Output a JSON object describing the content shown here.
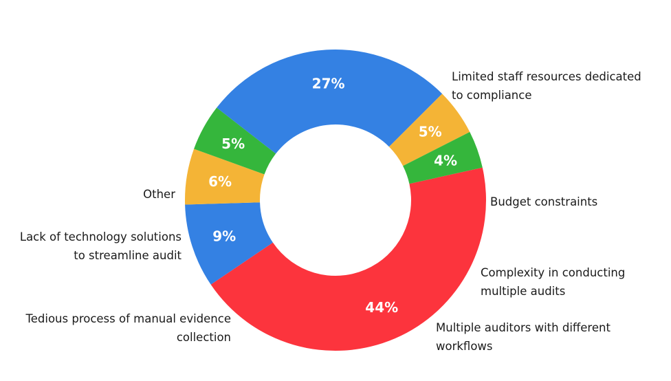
{
  "chart_data": {
    "type": "pie",
    "variant": "donut",
    "title": "",
    "legend": "none",
    "slices": [
      {
        "label": [
          "Limited staff resources  dedicated",
          "to compliance"
        ],
        "value": 44,
        "value_label": "44%",
        "color": "#fc343d"
      },
      {
        "label": [
          "Budget constraints"
        ],
        "value": 9,
        "value_label": "9%",
        "color": "#3481e3"
      },
      {
        "label": [
          "Complexity in conducting",
          "multiple audits"
        ],
        "value": 6,
        "value_label": "6%",
        "color": "#f4b436"
      },
      {
        "label": [
          "Multiple auditors with different",
          "workflows"
        ],
        "value": 5,
        "value_label": "5%",
        "color": "#35b63c"
      },
      {
        "label": [
          "Tedious process of manual evidence",
          "collection"
        ],
        "value": 27,
        "value_label": "27%",
        "color": "#3481e3"
      },
      {
        "label": [
          "Lack of technology solutions",
          "to streamline audit"
        ],
        "value": 5,
        "value_label": "5%",
        "color": "#f4b436"
      },
      {
        "label": [
          "Other"
        ],
        "value": 4,
        "value_label": "4%",
        "color": "#35b63c"
      }
    ]
  }
}
